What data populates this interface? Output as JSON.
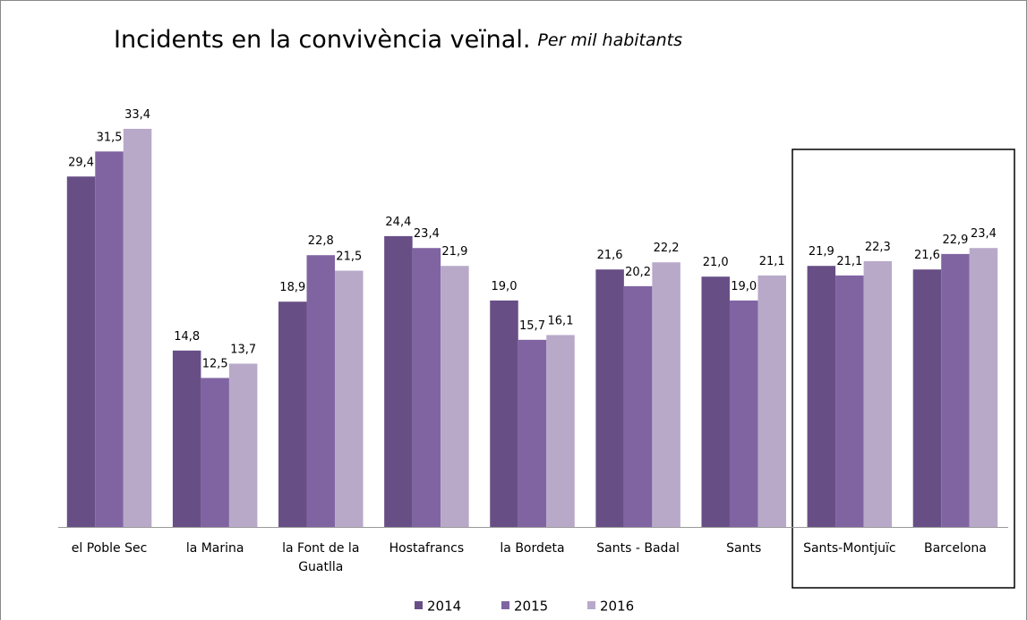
{
  "chart_data": {
    "type": "bar",
    "title": "Incidents en la convivència veïnal.",
    "subtitle": "Per mil habitants",
    "categories": [
      "el Poble Sec",
      "la Marina",
      "la Font de la Guatlla",
      "Hostafrancs",
      "la Bordeta",
      "Sants - Badal",
      "Sants",
      "Sants-Montjuïc",
      "Barcelona"
    ],
    "series": [
      {
        "name": "2014",
        "color": "#674f86",
        "values": [
          29.4,
          14.8,
          18.9,
          24.4,
          19.0,
          21.6,
          21.0,
          21.9,
          21.6
        ],
        "value_labels": [
          "29,4",
          "14,8",
          "18,9",
          "24,4",
          "19,0",
          "21,6",
          "21,0",
          "21,9",
          "21,6"
        ]
      },
      {
        "name": "2015",
        "color": "#8064a2",
        "values": [
          31.5,
          12.5,
          22.8,
          23.4,
          15.7,
          20.2,
          19.0,
          21.1,
          22.9
        ],
        "value_labels": [
          "31,5",
          "12,5",
          "22,8",
          "23,4",
          "15,7",
          "20,2",
          "19,0",
          "21,1",
          "22,9"
        ]
      },
      {
        "name": "2016",
        "color": "#b8a9c9",
        "values": [
          33.4,
          13.7,
          21.5,
          21.9,
          16.1,
          22.2,
          21.1,
          22.3,
          23.4
        ],
        "value_labels": [
          "33,4",
          "13,7",
          "21,5",
          "21,9",
          "16,1",
          "22,2",
          "21,1",
          "22,3",
          "23,4"
        ]
      }
    ],
    "legend": "bottom"
  }
}
